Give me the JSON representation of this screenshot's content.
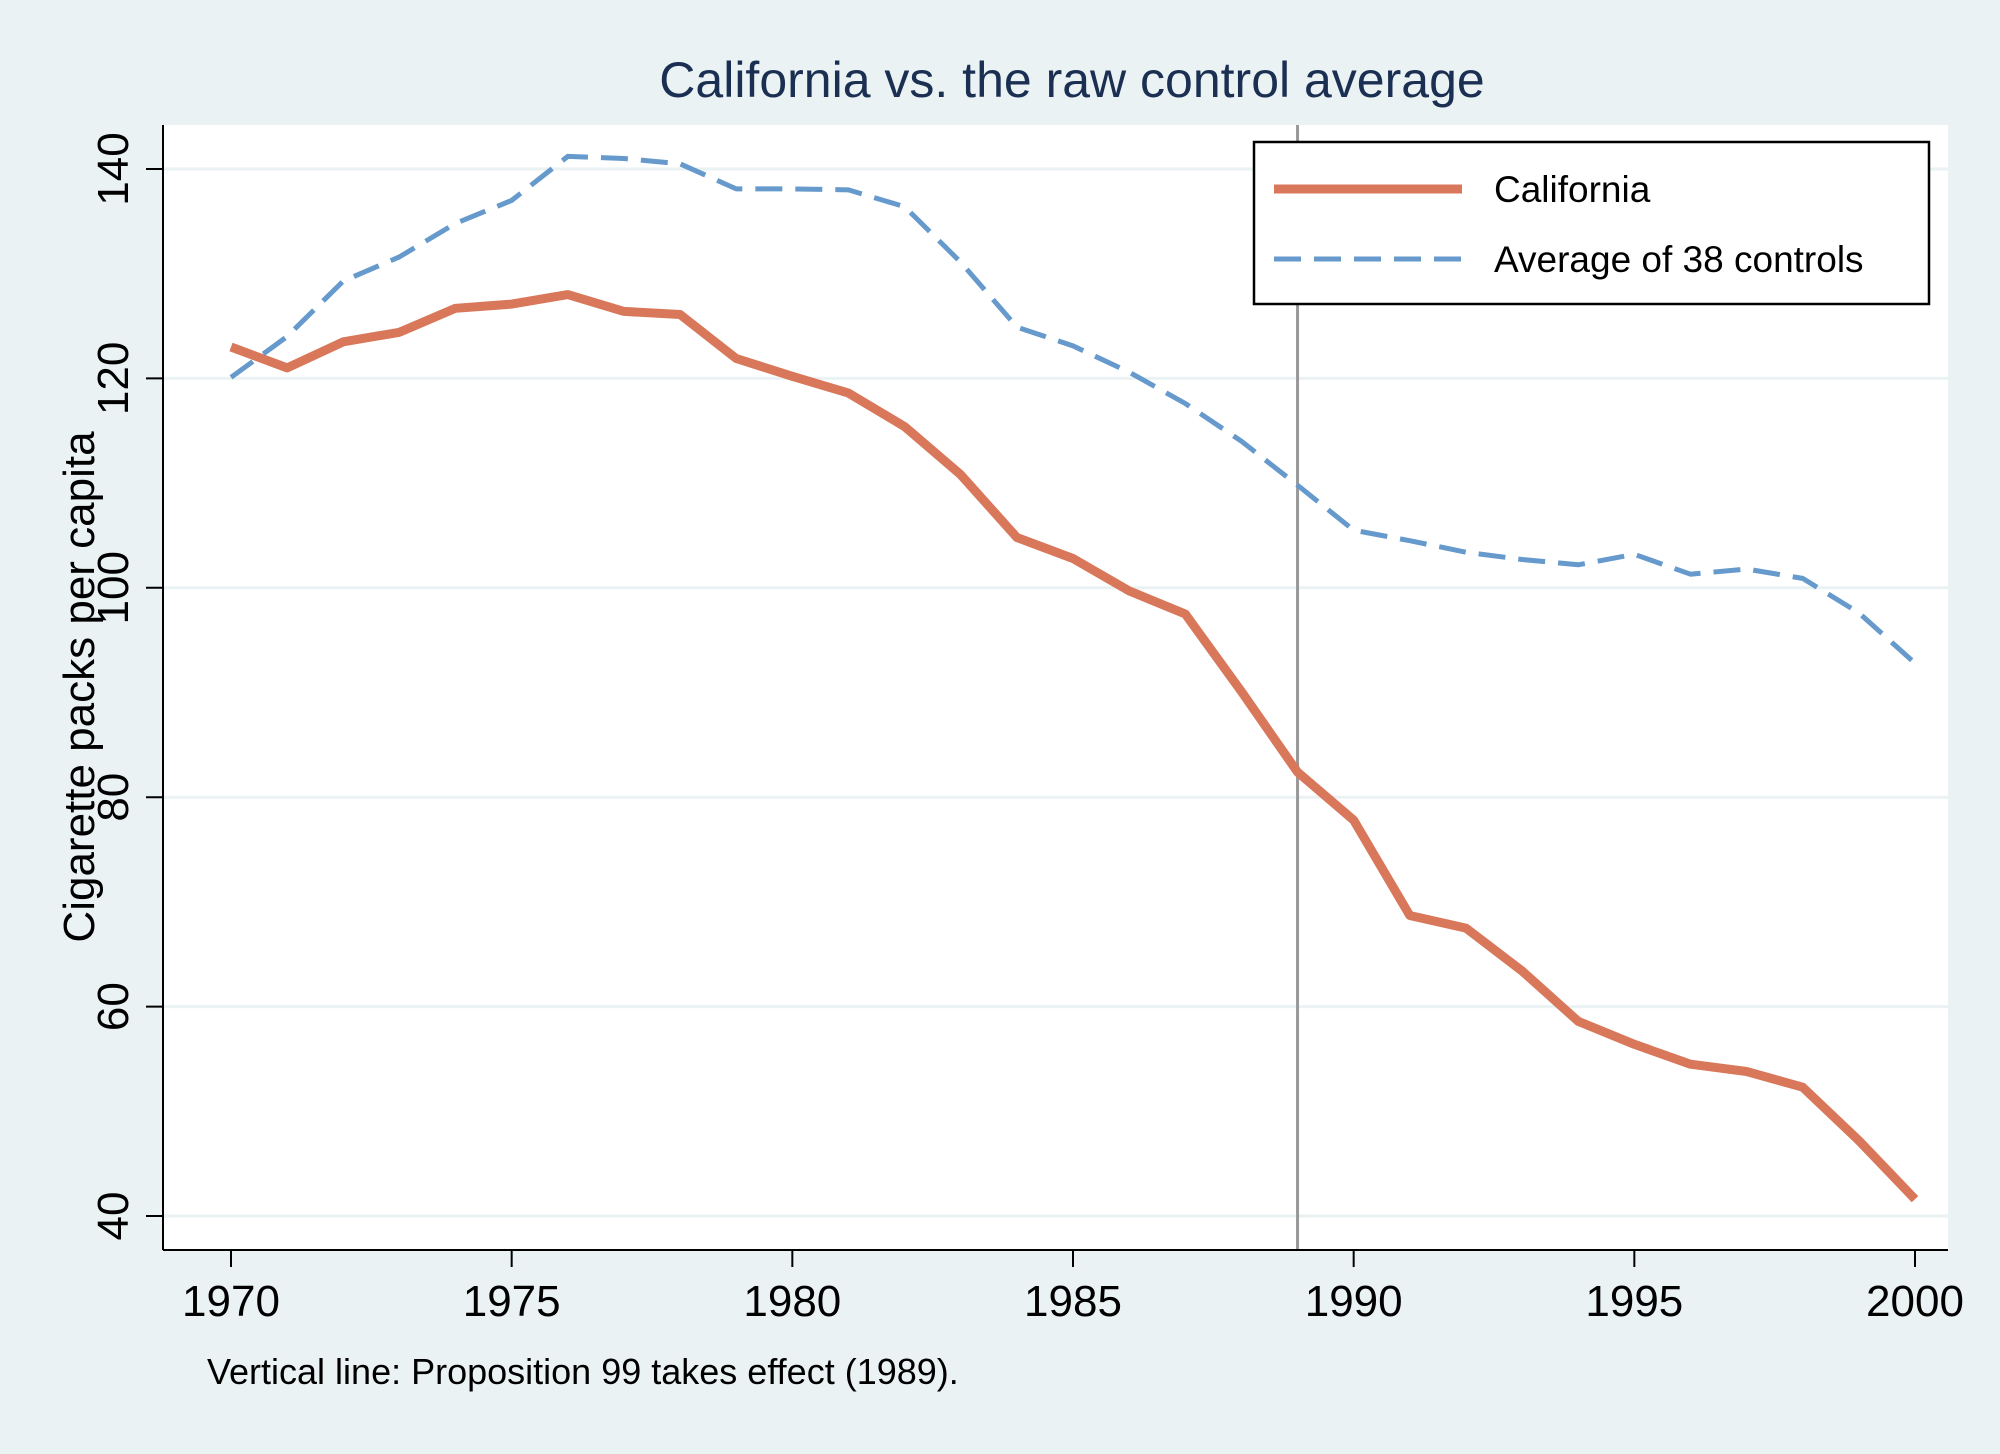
{
  "chart_data": {
    "type": "line",
    "title": "California vs. the raw control average",
    "xlabel": "",
    "ylabel": "Cigarette packs per capita",
    "xlim": [
      1970,
      2000
    ],
    "ylim": [
      40,
      140
    ],
    "x_ticks": [
      "1970",
      "1975",
      "1980",
      "1985",
      "1990",
      "1995",
      "2000"
    ],
    "y_ticks": [
      "40",
      "60",
      "80",
      "100",
      "120",
      "140"
    ],
    "grid": "horizontal",
    "legend_position": "top-right",
    "x": [
      1970,
      1971,
      1972,
      1973,
      1974,
      1975,
      1976,
      1977,
      1978,
      1979,
      1980,
      1981,
      1982,
      1983,
      1984,
      1985,
      1986,
      1987,
      1988,
      1989,
      1990,
      1991,
      1992,
      1993,
      1994,
      1995,
      1996,
      1997,
      1998,
      1999,
      2000
    ],
    "series": [
      {
        "name": "California",
        "color": "#d9775a",
        "style": "solid",
        "values": [
          123.0,
          121.0,
          123.5,
          124.4,
          126.7,
          127.1,
          128.0,
          126.4,
          126.1,
          121.9,
          120.2,
          118.6,
          115.4,
          110.8,
          104.8,
          102.8,
          99.7,
          97.5,
          90.1,
          82.4,
          77.8,
          68.7,
          67.5,
          63.4,
          58.6,
          56.4,
          54.5,
          53.8,
          52.3,
          47.2,
          41.6
        ]
      },
      {
        "name": "Average of 38 controls",
        "color": "#6699cc",
        "style": "dashed",
        "values": [
          120.1,
          124.0,
          129.3,
          131.6,
          134.8,
          137.0,
          141.2,
          141.0,
          140.5,
          138.1,
          138.1,
          138.0,
          136.4,
          131.1,
          124.9,
          123.1,
          120.6,
          117.6,
          114.0,
          109.8,
          105.5,
          104.5,
          103.4,
          102.7,
          102.2,
          103.2,
          101.3,
          101.8,
          100.9,
          97.6,
          92.8
        ]
      }
    ],
    "annotations": [
      {
        "type": "vline",
        "x": 1989,
        "color": "#999999"
      }
    ],
    "note": "Vertical line: Proposition 99 takes effect (1989)."
  }
}
